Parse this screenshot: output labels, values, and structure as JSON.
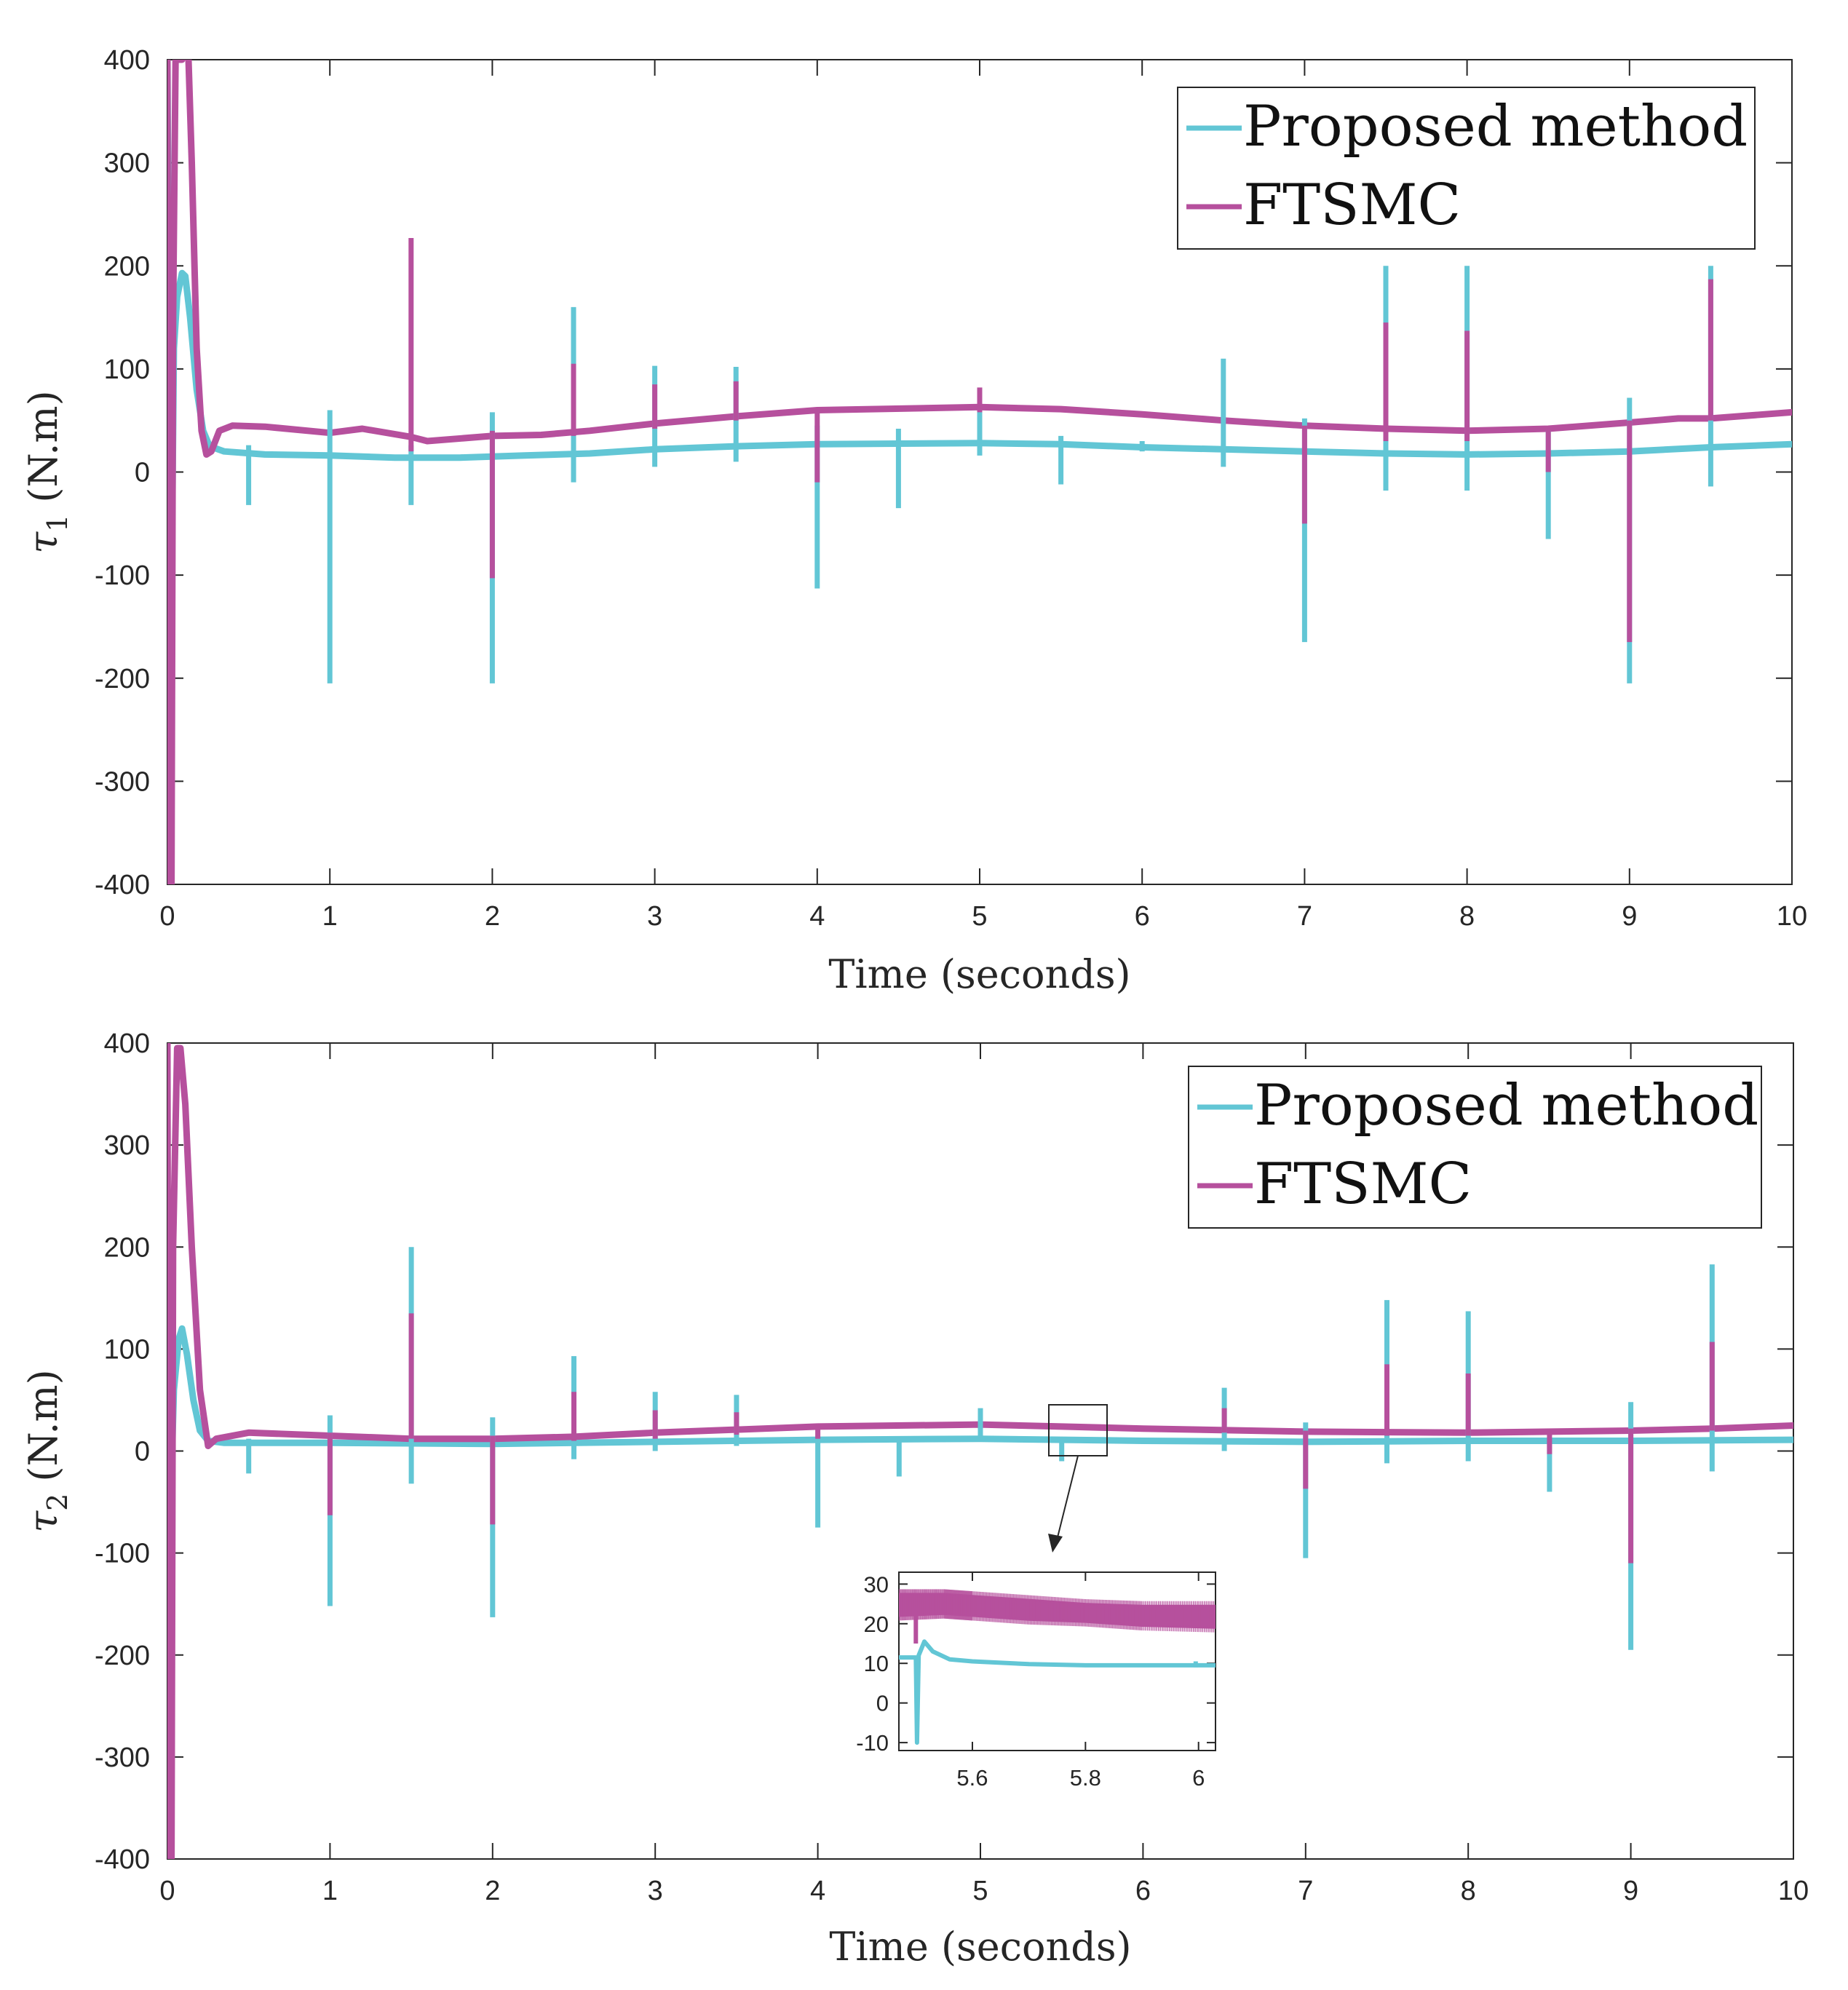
{
  "colors": {
    "proposed": "#62c6d5",
    "ftsmc": "#b6509d",
    "axis": "#262626",
    "grid": "#eeeeee"
  },
  "chart_data": [
    {
      "type": "line",
      "ylabel_symbol": "τ",
      "ylabel_sub": "1",
      "ylabel_unit": "(N.m)",
      "xlabel": "Time (seconds)",
      "xlim": [
        0,
        10
      ],
      "ylim": [
        -400,
        400
      ],
      "xticks": [
        "0",
        "1",
        "2",
        "3",
        "4",
        "5",
        "6",
        "7",
        "8",
        "9",
        "10"
      ],
      "yticks": [
        "-400",
        "-300",
        "-200",
        "-100",
        "0",
        "100",
        "200",
        "300",
        "400"
      ],
      "legend": [
        "Proposed method",
        "FTSMC"
      ],
      "legend_position": "top-right",
      "series": [
        {
          "name": "Proposed method",
          "points": [
            [
              0,
              400
            ],
            [
              0.02,
              -200
            ],
            [
              0.04,
              120
            ],
            [
              0.06,
              170
            ],
            [
              0.09,
              193
            ],
            [
              0.11,
              190
            ],
            [
              0.14,
              150
            ],
            [
              0.18,
              80
            ],
            [
              0.22,
              40
            ],
            [
              0.26,
              25
            ],
            [
              0.35,
              20
            ],
            [
              0.6,
              17
            ],
            [
              1.0,
              16
            ],
            [
              1.4,
              14
            ],
            [
              1.8,
              14
            ],
            [
              2.2,
              16
            ],
            [
              2.6,
              18
            ],
            [
              3.0,
              22
            ],
            [
              3.5,
              25
            ],
            [
              4.0,
              27
            ],
            [
              5.0,
              28
            ],
            [
              5.5,
              27
            ],
            [
              6.0,
              24
            ],
            [
              6.5,
              22
            ],
            [
              7.0,
              20
            ],
            [
              7.5,
              18
            ],
            [
              8.0,
              17
            ],
            [
              8.5,
              18
            ],
            [
              9.0,
              20
            ],
            [
              9.5,
              24
            ],
            [
              10.0,
              27
            ]
          ],
          "spikes": [
            [
              0.5,
              26,
              -32
            ],
            [
              1.0,
              60,
              -205
            ],
            [
              1.5,
              26,
              -32
            ],
            [
              2.0,
              58,
              -205
            ],
            [
              2.5,
              160,
              -10
            ],
            [
              3.0,
              103,
              5
            ],
            [
              3.5,
              102,
              10
            ],
            [
              4.0,
              45,
              -113
            ],
            [
              4.5,
              42,
              -35
            ],
            [
              5.0,
              75,
              16
            ],
            [
              5.5,
              35,
              -12
            ],
            [
              6.0,
              30,
              20
            ],
            [
              6.5,
              110,
              5
            ],
            [
              7.0,
              52,
              -165
            ],
            [
              7.5,
              200,
              -18
            ],
            [
              8.0,
              200,
              -18
            ],
            [
              8.5,
              40,
              -65
            ],
            [
              9.0,
              72,
              -205
            ],
            [
              9.5,
              200,
              -14
            ]
          ]
        },
        {
          "name": "FTSMC",
          "points": [
            [
              0,
              400
            ],
            [
              0.01,
              -400
            ],
            [
              0.025,
              -400
            ],
            [
              0.035,
              150
            ],
            [
              0.05,
              400
            ],
            [
              0.09,
              400
            ],
            [
              0.1,
              430
            ],
            [
              0.13,
              400
            ],
            [
              0.15,
              300
            ],
            [
              0.18,
              120
            ],
            [
              0.21,
              40
            ],
            [
              0.24,
              17
            ],
            [
              0.27,
              20
            ],
            [
              0.32,
              40
            ],
            [
              0.4,
              45
            ],
            [
              0.6,
              44
            ],
            [
              1.0,
              38
            ],
            [
              1.2,
              42
            ],
            [
              1.5,
              34
            ],
            [
              1.6,
              30
            ],
            [
              2.0,
              35
            ],
            [
              2.3,
              36
            ],
            [
              2.6,
              40
            ],
            [
              3.0,
              47
            ],
            [
              3.5,
              54
            ],
            [
              4.0,
              60
            ],
            [
              5.0,
              63
            ],
            [
              5.5,
              61
            ],
            [
              6.0,
              56
            ],
            [
              6.5,
              50
            ],
            [
              7.0,
              45
            ],
            [
              7.5,
              42
            ],
            [
              8.0,
              40
            ],
            [
              8.5,
              42
            ],
            [
              9.0,
              48
            ],
            [
              9.3,
              52
            ],
            [
              9.5,
              52
            ],
            [
              10.0,
              58
            ]
          ],
          "spikes": [
            [
              1.5,
              227,
              20
            ],
            [
              2.0,
              40,
              -103
            ],
            [
              2.5,
              105,
              35
            ],
            [
              3.0,
              85,
              42
            ],
            [
              3.5,
              88,
              50
            ],
            [
              4.0,
              60,
              -10
            ],
            [
              5.0,
              82,
              58
            ],
            [
              7.0,
              45,
              -50
            ],
            [
              7.5,
              145,
              30
            ],
            [
              8.0,
              137,
              30
            ],
            [
              8.5,
              42,
              0
            ],
            [
              9.0,
              50,
              -165
            ],
            [
              9.5,
              187,
              50
            ]
          ]
        }
      ]
    },
    {
      "type": "line",
      "ylabel_symbol": "τ",
      "ylabel_sub": "2",
      "ylabel_unit": "(N.m)",
      "xlabel": "Time (seconds)",
      "xlim": [
        0,
        10
      ],
      "ylim": [
        -400,
        400
      ],
      "xticks": [
        "0",
        "1",
        "2",
        "3",
        "4",
        "5",
        "6",
        "7",
        "8",
        "9",
        "10"
      ],
      "yticks": [
        "-400",
        "-300",
        "-200",
        "-100",
        "0",
        "100",
        "200",
        "300",
        "400"
      ],
      "legend": [
        "Proposed method",
        "FTSMC"
      ],
      "legend_position": "top-right",
      "series": [
        {
          "name": "Proposed method",
          "points": [
            [
              0,
              0
            ],
            [
              0.02,
              -50
            ],
            [
              0.04,
              60
            ],
            [
              0.07,
              110
            ],
            [
              0.09,
              120
            ],
            [
              0.12,
              95
            ],
            [
              0.16,
              50
            ],
            [
              0.2,
              20
            ],
            [
              0.25,
              10
            ],
            [
              0.35,
              8
            ],
            [
              1.0,
              8
            ],
            [
              2.0,
              7
            ],
            [
              3.0,
              9
            ],
            [
              4.0,
              11
            ],
            [
              5.0,
              12
            ],
            [
              6.0,
              10
            ],
            [
              7.0,
              9
            ],
            [
              8.0,
              10
            ],
            [
              9.0,
              10
            ],
            [
              10.0,
              11
            ]
          ],
          "spikes": [
            [
              0.5,
              12,
              -22
            ],
            [
              1.0,
              35,
              -152
            ],
            [
              1.5,
              200,
              -32
            ],
            [
              2.0,
              33,
              -163
            ],
            [
              2.5,
              93,
              -8
            ],
            [
              3.0,
              58,
              0
            ],
            [
              3.5,
              55,
              5
            ],
            [
              4.0,
              11,
              -75
            ],
            [
              4.5,
              11,
              -25
            ],
            [
              5.0,
              42,
              10
            ],
            [
              5.5,
              12,
              -10
            ],
            [
              6.5,
              62,
              0
            ],
            [
              7.0,
              28,
              -105
            ],
            [
              7.5,
              148,
              -12
            ],
            [
              8.0,
              137,
              -10
            ],
            [
              8.5,
              11,
              -40
            ],
            [
              9.0,
              48,
              -195
            ],
            [
              9.5,
              183,
              -20
            ]
          ]
        },
        {
          "name": "FTSMC",
          "points": [
            [
              0,
              400
            ],
            [
              0.01,
              -400
            ],
            [
              0.025,
              -400
            ],
            [
              0.035,
              200
            ],
            [
              0.06,
              395
            ],
            [
              0.08,
              395
            ],
            [
              0.11,
              340
            ],
            [
              0.15,
              200
            ],
            [
              0.2,
              60
            ],
            [
              0.25,
              5
            ],
            [
              0.3,
              12
            ],
            [
              0.5,
              18
            ],
            [
              1.0,
              15
            ],
            [
              1.5,
              12
            ],
            [
              2.0,
              12
            ],
            [
              2.5,
              14
            ],
            [
              3.0,
              18
            ],
            [
              4.0,
              24
            ],
            [
              5.0,
              26
            ],
            [
              5.5,
              24
            ],
            [
              6.0,
              22
            ],
            [
              7.0,
              19
            ],
            [
              8.0,
              18
            ],
            [
              9.0,
              20
            ],
            [
              9.5,
              22
            ],
            [
              10.0,
              25
            ]
          ],
          "spikes": [
            [
              1.0,
              18,
              -63
            ],
            [
              1.5,
              135,
              12
            ],
            [
              2.0,
              15,
              -72
            ],
            [
              2.5,
              58,
              10
            ],
            [
              3.0,
              40,
              12
            ],
            [
              3.5,
              38,
              16
            ],
            [
              4.0,
              25,
              12
            ],
            [
              6.5,
              42,
              18
            ],
            [
              7.0,
              20,
              -37
            ],
            [
              7.5,
              85,
              15
            ],
            [
              8.0,
              76,
              15
            ],
            [
              8.5,
              20,
              -3
            ],
            [
              9.0,
              22,
              -110
            ],
            [
              9.5,
              107,
              20
            ]
          ]
        }
      ]
    },
    {
      "type": "line",
      "role": "inset",
      "xlim": [
        5.47,
        6.03
      ],
      "ylim": [
        -12,
        33
      ],
      "xticks": [
        "5.6",
        "5.8",
        "6"
      ],
      "yticks": [
        "-10",
        "0",
        "10",
        "20",
        "30"
      ],
      "series": [
        {
          "name": "Proposed method",
          "points": [
            [
              5.47,
              11.5
            ],
            [
              5.5,
              11.5
            ],
            [
              5.502,
              -10
            ],
            [
              5.505,
              12
            ],
            [
              5.515,
              15.5
            ],
            [
              5.53,
              13
            ],
            [
              5.56,
              11
            ],
            [
              5.6,
              10.5
            ],
            [
              5.7,
              9.8
            ],
            [
              5.8,
              9.5
            ],
            [
              5.9,
              9.5
            ],
            [
              6.0,
              9.5
            ],
            [
              6.03,
              9.5
            ]
          ],
          "spikes": [
            [
              5.995,
              10.5,
              9
            ]
          ]
        },
        {
          "name": "FTSMC",
          "band": [
            [
              5.47,
              22,
              27.5
            ],
            [
              5.55,
              22.5,
              27.5
            ],
            [
              5.6,
              22,
              27
            ],
            [
              5.7,
              21,
              26
            ],
            [
              5.8,
              20.5,
              25
            ],
            [
              5.9,
              19.5,
              24.5
            ],
            [
              6.03,
              19,
              24.5
            ]
          ],
          "spikes": [
            [
              5.5,
              24,
              15
            ]
          ]
        }
      ]
    }
  ]
}
